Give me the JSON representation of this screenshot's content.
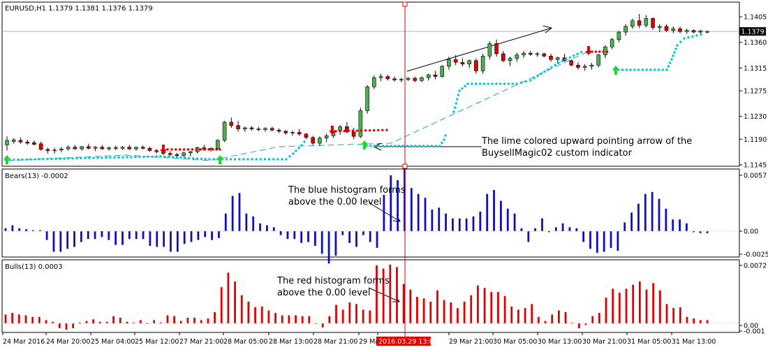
{
  "window": {
    "symbol_header": "EURUSD,H1  1.1379 1.1381 1.1376 1.1379"
  },
  "colors": {
    "bull_candle": "#4caf50",
    "bear_candle": "#e00000",
    "cyan_dots": "#00c8d2",
    "red_dots": "#e00000",
    "bears_hist": "#1010b4",
    "bulls_hist": "#e00000",
    "arrow_up": "#22d922",
    "arrow_down": "#e00000",
    "crosshair": "#e00000",
    "date_highlight_bg": "#e00000"
  },
  "panels": {
    "price": {
      "ticks": [
        "1.1405",
        "1.1360",
        "1.1315",
        "1.1275",
        "1.1230",
        "1.1190",
        "1.1145"
      ],
      "current_price": "1.1379"
    },
    "bears": {
      "title": "Bears(13) -0.0002",
      "ticks": [
        "0.0057",
        "0.00",
        "-0.0025"
      ]
    },
    "bulls": {
      "title": "Bulls(13) 0.0003",
      "ticks": [
        "0.0072",
        "0.00",
        "-0.001"
      ]
    }
  },
  "annotations": {
    "lime_arrow_line1": "The lime colored upward pointing arrow of the",
    "lime_arrow_line2": "BuysellMagic02 custom indicator",
    "blue_hist_line1": "The blue histogram forms",
    "blue_hist_line2": "above the 0.00 level",
    "red_hist_line1": "The red histogram forms",
    "red_hist_line2": "above the 0.00 level"
  },
  "time_axis": {
    "labels": [
      "24 Mar 2016",
      "24 Mar 20:00",
      "25 Mar 04:00",
      "25 Mar 12:00",
      "27 Mar 21:00",
      "28 Mar 05:00",
      "28 Mar 13:00",
      "28 Mar 21:00",
      "29 Mar",
      "2016.03.29 13:00",
      "29 Mar 21:00",
      "30 Mar 05:00",
      "30 Mar 13:00",
      "30 Mar 21:00",
      "31 Mar 05:00",
      "31 Mar 13:00"
    ]
  },
  "chart_data": {
    "type": "candlestick",
    "title": "EURUSD,H1",
    "price_axis_ticks": [
      1.1405,
      1.136,
      1.1315,
      1.1275,
      1.123,
      1.119,
      1.1145
    ],
    "current_price": 1.1379,
    "candles": [
      {
        "o": 1.118,
        "h": 1.1195,
        "l": 1.117,
        "c": 1.1188
      },
      {
        "o": 1.1186,
        "h": 1.1192,
        "l": 1.1182,
        "c": 1.1189
      },
      {
        "o": 1.1188,
        "h": 1.1193,
        "l": 1.1182,
        "c": 1.1185
      },
      {
        "o": 1.1185,
        "h": 1.1189,
        "l": 1.118,
        "c": 1.1183
      },
      {
        "o": 1.1184,
        "h": 1.1188,
        "l": 1.1179,
        "c": 1.1181
      },
      {
        "o": 1.1182,
        "h": 1.1186,
        "l": 1.117,
        "c": 1.1172
      },
      {
        "o": 1.1172,
        "h": 1.1175,
        "l": 1.1165,
        "c": 1.117
      },
      {
        "o": 1.117,
        "h": 1.1175,
        "l": 1.1165,
        "c": 1.1171
      },
      {
        "o": 1.1171,
        "h": 1.1176,
        "l": 1.1167,
        "c": 1.1173
      },
      {
        "o": 1.1173,
        "h": 1.1179,
        "l": 1.117,
        "c": 1.1176
      },
      {
        "o": 1.1176,
        "h": 1.118,
        "l": 1.1172,
        "c": 1.1173
      },
      {
        "o": 1.1173,
        "h": 1.1178,
        "l": 1.117,
        "c": 1.1177
      },
      {
        "o": 1.1177,
        "h": 1.1182,
        "l": 1.1172,
        "c": 1.1174
      },
      {
        "o": 1.1174,
        "h": 1.1178,
        "l": 1.1169,
        "c": 1.1176
      },
      {
        "o": 1.1176,
        "h": 1.118,
        "l": 1.1172,
        "c": 1.1173
      },
      {
        "o": 1.1173,
        "h": 1.1177,
        "l": 1.117,
        "c": 1.1175
      },
      {
        "o": 1.1175,
        "h": 1.1179,
        "l": 1.1171,
        "c": 1.1174
      },
      {
        "o": 1.1174,
        "h": 1.1178,
        "l": 1.1171,
        "c": 1.1176
      },
      {
        "o": 1.1176,
        "h": 1.118,
        "l": 1.1171,
        "c": 1.1173
      },
      {
        "o": 1.1173,
        "h": 1.1177,
        "l": 1.117,
        "c": 1.1176
      },
      {
        "o": 1.1176,
        "h": 1.1179,
        "l": 1.1172,
        "c": 1.1174
      },
      {
        "o": 1.1174,
        "h": 1.1177,
        "l": 1.1168,
        "c": 1.117
      },
      {
        "o": 1.117,
        "h": 1.1173,
        "l": 1.1165,
        "c": 1.1168
      },
      {
        "o": 1.1168,
        "h": 1.117,
        "l": 1.1162,
        "c": 1.1165
      },
      {
        "o": 1.1165,
        "h": 1.1169,
        "l": 1.116,
        "c": 1.1163
      },
      {
        "o": 1.1163,
        "h": 1.1166,
        "l": 1.1158,
        "c": 1.1161
      },
      {
        "o": 1.1161,
        "h": 1.1168,
        "l": 1.1159,
        "c": 1.1166
      },
      {
        "o": 1.1166,
        "h": 1.117,
        "l": 1.116,
        "c": 1.1168
      },
      {
        "o": 1.1168,
        "h": 1.1177,
        "l": 1.1165,
        "c": 1.1175
      },
      {
        "o": 1.1175,
        "h": 1.118,
        "l": 1.117,
        "c": 1.1172
      },
      {
        "o": 1.1172,
        "h": 1.1176,
        "l": 1.1168,
        "c": 1.1174
      },
      {
        "o": 1.1174,
        "h": 1.119,
        "l": 1.1171,
        "c": 1.1188
      },
      {
        "o": 1.1188,
        "h": 1.1222,
        "l": 1.1185,
        "c": 1.122
      },
      {
        "o": 1.122,
        "h": 1.1228,
        "l": 1.121,
        "c": 1.1214
      },
      {
        "o": 1.1214,
        "h": 1.1222,
        "l": 1.1203,
        "c": 1.1208
      },
      {
        "o": 1.1208,
        "h": 1.1212,
        "l": 1.1203,
        "c": 1.121
      },
      {
        "o": 1.121,
        "h": 1.1213,
        "l": 1.1205,
        "c": 1.1208
      },
      {
        "o": 1.1208,
        "h": 1.1212,
        "l": 1.1204,
        "c": 1.1207
      },
      {
        "o": 1.1207,
        "h": 1.1211,
        "l": 1.1203,
        "c": 1.1209
      },
      {
        "o": 1.1209,
        "h": 1.1212,
        "l": 1.1204,
        "c": 1.1206
      },
      {
        "o": 1.1206,
        "h": 1.1209,
        "l": 1.1201,
        "c": 1.1204
      },
      {
        "o": 1.1204,
        "h": 1.1206,
        "l": 1.1198,
        "c": 1.1201
      },
      {
        "o": 1.1201,
        "h": 1.1205,
        "l": 1.1196,
        "c": 1.1202
      },
      {
        "o": 1.1202,
        "h": 1.1208,
        "l": 1.1196,
        "c": 1.1199
      },
      {
        "o": 1.1199,
        "h": 1.1201,
        "l": 1.119,
        "c": 1.1193
      },
      {
        "o": 1.1193,
        "h": 1.1196,
        "l": 1.118,
        "c": 1.1183
      },
      {
        "o": 1.1183,
        "h": 1.1195,
        "l": 1.1178,
        "c": 1.1192
      },
      {
        "o": 1.1192,
        "h": 1.12,
        "l": 1.1185,
        "c": 1.1196
      },
      {
        "o": 1.1196,
        "h": 1.1208,
        "l": 1.1192,
        "c": 1.1205
      },
      {
        "o": 1.1205,
        "h": 1.1215,
        "l": 1.1198,
        "c": 1.1212
      },
      {
        "o": 1.1212,
        "h": 1.122,
        "l": 1.12,
        "c": 1.1203
      },
      {
        "o": 1.1203,
        "h": 1.121,
        "l": 1.119,
        "c": 1.1195
      },
      {
        "o": 1.1195,
        "h": 1.1245,
        "l": 1.1192,
        "c": 1.124
      },
      {
        "o": 1.124,
        "h": 1.1285,
        "l": 1.1235,
        "c": 1.1282
      },
      {
        "o": 1.1282,
        "h": 1.1302,
        "l": 1.1278,
        "c": 1.1298
      },
      {
        "o": 1.1298,
        "h": 1.1305,
        "l": 1.1292,
        "c": 1.13
      },
      {
        "o": 1.13,
        "h": 1.1303,
        "l": 1.1293,
        "c": 1.1296
      },
      {
        "o": 1.1296,
        "h": 1.13,
        "l": 1.1291,
        "c": 1.1294
      },
      {
        "o": 1.1294,
        "h": 1.1298,
        "l": 1.129,
        "c": 1.1295
      },
      {
        "o": 1.1295,
        "h": 1.1299,
        "l": 1.1292,
        "c": 1.1297
      },
      {
        "o": 1.1297,
        "h": 1.13,
        "l": 1.129,
        "c": 1.1293
      },
      {
        "o": 1.1293,
        "h": 1.13,
        "l": 1.129,
        "c": 1.1298
      },
      {
        "o": 1.1298,
        "h": 1.1305,
        "l": 1.1293,
        "c": 1.1303
      },
      {
        "o": 1.1303,
        "h": 1.131,
        "l": 1.1295,
        "c": 1.13
      },
      {
        "o": 1.13,
        "h": 1.132,
        "l": 1.1298,
        "c": 1.1318
      },
      {
        "o": 1.1318,
        "h": 1.1335,
        "l": 1.1312,
        "c": 1.133
      },
      {
        "o": 1.133,
        "h": 1.1338,
        "l": 1.132,
        "c": 1.1325
      },
      {
        "o": 1.1325,
        "h": 1.1332,
        "l": 1.1318,
        "c": 1.1322
      },
      {
        "o": 1.1322,
        "h": 1.133,
        "l": 1.1315,
        "c": 1.1328
      },
      {
        "o": 1.1328,
        "h": 1.1332,
        "l": 1.1305,
        "c": 1.131
      },
      {
        "o": 1.131,
        "h": 1.134,
        "l": 1.1305,
        "c": 1.1336
      },
      {
        "o": 1.1336,
        "h": 1.1362,
        "l": 1.133,
        "c": 1.1358
      },
      {
        "o": 1.1358,
        "h": 1.1365,
        "l": 1.1335,
        "c": 1.134
      },
      {
        "o": 1.134,
        "h": 1.1345,
        "l": 1.1325,
        "c": 1.1328
      },
      {
        "o": 1.1328,
        "h": 1.1335,
        "l": 1.1318,
        "c": 1.1332
      },
      {
        "o": 1.1332,
        "h": 1.1342,
        "l": 1.1326,
        "c": 1.1338
      },
      {
        "o": 1.1338,
        "h": 1.1345,
        "l": 1.1333,
        "c": 1.1341
      },
      {
        "o": 1.1341,
        "h": 1.1345,
        "l": 1.1336,
        "c": 1.1339
      },
      {
        "o": 1.1339,
        "h": 1.1343,
        "l": 1.1335,
        "c": 1.134
      },
      {
        "o": 1.134,
        "h": 1.1342,
        "l": 1.1334,
        "c": 1.1336
      },
      {
        "o": 1.1336,
        "h": 1.134,
        "l": 1.1326,
        "c": 1.133
      },
      {
        "o": 1.133,
        "h": 1.1335,
        "l": 1.1322,
        "c": 1.1333
      },
      {
        "o": 1.1333,
        "h": 1.134,
        "l": 1.1326,
        "c": 1.1328
      },
      {
        "o": 1.1328,
        "h": 1.133,
        "l": 1.1318,
        "c": 1.132
      },
      {
        "o": 1.132,
        "h": 1.1325,
        "l": 1.1312,
        "c": 1.1316
      },
      {
        "o": 1.1316,
        "h": 1.1322,
        "l": 1.131,
        "c": 1.1318
      },
      {
        "o": 1.1318,
        "h": 1.1324,
        "l": 1.1312,
        "c": 1.132
      },
      {
        "o": 1.132,
        "h": 1.134,
        "l": 1.1316,
        "c": 1.1338
      },
      {
        "o": 1.1338,
        "h": 1.1355,
        "l": 1.1332,
        "c": 1.1352
      },
      {
        "o": 1.1352,
        "h": 1.1368,
        "l": 1.1348,
        "c": 1.1365
      },
      {
        "o": 1.1365,
        "h": 1.138,
        "l": 1.136,
        "c": 1.1378
      },
      {
        "o": 1.1378,
        "h": 1.1392,
        "l": 1.1372,
        "c": 1.1388
      },
      {
        "o": 1.1388,
        "h": 1.1402,
        "l": 1.1384,
        "c": 1.1398
      },
      {
        "o": 1.1398,
        "h": 1.141,
        "l": 1.1385,
        "c": 1.139
      },
      {
        "o": 1.139,
        "h": 1.1408,
        "l": 1.1386,
        "c": 1.1402
      },
      {
        "o": 1.1402,
        "h": 1.1404,
        "l": 1.1382,
        "c": 1.1386
      },
      {
        "o": 1.1386,
        "h": 1.1392,
        "l": 1.1378,
        "c": 1.1388
      },
      {
        "o": 1.1388,
        "h": 1.1392,
        "l": 1.1378,
        "c": 1.1381
      },
      {
        "o": 1.1381,
        "h": 1.1388,
        "l": 1.1376,
        "c": 1.1384
      },
      {
        "o": 1.1384,
        "h": 1.1388,
        "l": 1.1376,
        "c": 1.1379
      },
      {
        "o": 1.1379,
        "h": 1.1384,
        "l": 1.1375,
        "c": 1.1381
      },
      {
        "o": 1.1381,
        "h": 1.1383,
        "l": 1.1376,
        "c": 1.1378
      },
      {
        "o": 1.1378,
        "h": 1.1382,
        "l": 1.1375,
        "c": 1.138
      },
      {
        "o": 1.1379,
        "h": 1.1381,
        "l": 1.1376,
        "c": 1.1379
      }
    ],
    "bears_histogram": [
      0.0003,
      0.0006,
      0.0003,
      0.0002,
      0.0001,
      0.0001,
      -0.0009,
      -0.0021,
      -0.0021,
      -0.0018,
      -0.0016,
      -0.0011,
      -0.0008,
      -0.0008,
      -0.0006,
      -0.0009,
      -0.0014,
      -0.0014,
      -0.0008,
      -0.0008,
      -0.0008,
      -0.0015,
      -0.0016,
      -0.0016,
      -0.0021,
      -0.0021,
      -0.0013,
      -0.0011,
      -0.0009,
      -0.0006,
      -0.0009,
      -0.0007,
      0.0018,
      0.0036,
      0.0039,
      0.0018,
      0.0015,
      0.0008,
      0.0006,
      0.0004,
      -0.0004,
      -0.0008,
      -0.0008,
      -0.0012,
      -0.0011,
      -0.0015,
      -0.0023,
      -0.0033,
      -0.0025,
      -0.0004,
      -0.0012,
      -0.0016,
      -0.0004,
      -0.0011,
      -0.0017,
      0.0037,
      0.0057,
      0.0052,
      0.0063,
      0.0044,
      0.0038,
      0.0034,
      0.0022,
      0.0024,
      0.0018,
      0.0013,
      0.0013,
      0.0013,
      0.0015,
      0.002,
      0.0038,
      0.0042,
      0.0031,
      0.0023,
      0.0018,
      0.0003,
      -0.0011,
      0.0003,
      0.0013,
      -0.0001,
      0.0004,
      0.0008,
      0.0004,
      0.0003,
      -0.0011,
      -0.0018,
      -0.0022,
      -0.0021,
      -0.0017,
      -0.002,
      0.0009,
      0.0019,
      0.0028,
      0.0038,
      0.004,
      0.0033,
      0.0023,
      0.0012,
      0.0012,
      0.0008,
      -0.0001,
      -0.0002,
      -0.0002
    ],
    "bulls_histogram": [
      0.0011,
      0.0013,
      0.0011,
      0.001,
      0.0008,
      0.0008,
      0.0004,
      0.0002,
      -0.0006,
      -0.0008,
      -0.0006,
      0.0001,
      0.0003,
      0.0005,
      0.0002,
      0.0002,
      0.0009,
      0.0007,
      0.0002,
      0.0001,
      0.0004,
      0.0,
      0.0004,
      0.0001,
      0.001,
      0.0009,
      0.0003,
      0.0007,
      0.0007,
      0.0004,
      0.0006,
      0.0014,
      0.0045,
      0.0063,
      0.0052,
      0.0035,
      0.0027,
      0.002,
      0.0021,
      0.0016,
      0.0013,
      0.001,
      0.001,
      0.001,
      0.0009,
      0.0009,
      0.0,
      -0.0005,
      0.0009,
      0.0023,
      0.0017,
      0.0026,
      0.0024,
      0.0017,
      0.0016,
      0.0072,
      0.0068,
      0.0073,
      0.007,
      0.0049,
      0.0042,
      0.0033,
      0.0031,
      0.0027,
      0.0041,
      0.0029,
      0.0026,
      0.0019,
      0.0027,
      0.0035,
      0.0047,
      0.0044,
      0.0039,
      0.0039,
      0.0034,
      0.0021,
      0.0017,
      0.0019,
      0.0024,
      0.0008,
      0.0003,
      0.0011,
      0.0016,
      0.0014,
      0.0001,
      -0.0006,
      -0.0002,
      0.0009,
      0.0013,
      0.0032,
      0.0043,
      0.0038,
      0.0043,
      0.0048,
      0.0052,
      0.0042,
      0.005,
      0.0041,
      0.0024,
      0.0019,
      0.002,
      0.0008,
      0.0006,
      0.0004,
      0.0004
    ]
  }
}
